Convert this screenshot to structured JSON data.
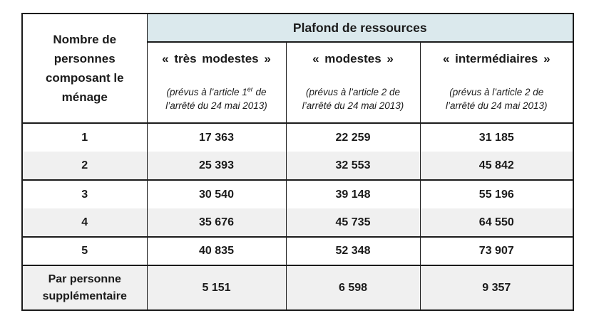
{
  "table": {
    "corner_header": "Nombre de personnes composant le ménage",
    "group_header": "Plafond de ressources",
    "columns": [
      {
        "title": "« très modestes »",
        "note_pre": "(prévus à l’article 1",
        "note_sup": "er",
        "note_post": " de l’arrêté du 24 mai 2013)"
      },
      {
        "title": "« modestes »",
        "note_pre": "(prévus à l’article 2 de l’arrêté du 24 mai 2013)",
        "note_sup": "",
        "note_post": ""
      },
      {
        "title": "« intermédiaires »",
        "note_pre": "(prévus à l’article 2 de l’arrêté du 24 mai 2013)",
        "note_sup": "",
        "note_post": ""
      }
    ],
    "rows": [
      {
        "label": "1",
        "values": [
          "17 363",
          "22 259",
          "31 185"
        ]
      },
      {
        "label": "2",
        "values": [
          "25 393",
          "32 553",
          "45 842"
        ]
      },
      {
        "label": "3",
        "values": [
          "30 540",
          "39 148",
          "55 196"
        ]
      },
      {
        "label": "4",
        "values": [
          "35 676",
          "45 735",
          "64 550"
        ]
      },
      {
        "label": "5",
        "values": [
          "40 835",
          "52 348",
          "73 907"
        ]
      },
      {
        "label": "Par personne supplémentaire",
        "values": [
          "5 151",
          "6 598",
          "9 357"
        ]
      }
    ]
  },
  "colors": {
    "header_band_blue": "#dbe9ed",
    "stripe_gray": "#f0f0f0",
    "border_dark": "#1b1b1b",
    "text": "#1b1b1b"
  }
}
